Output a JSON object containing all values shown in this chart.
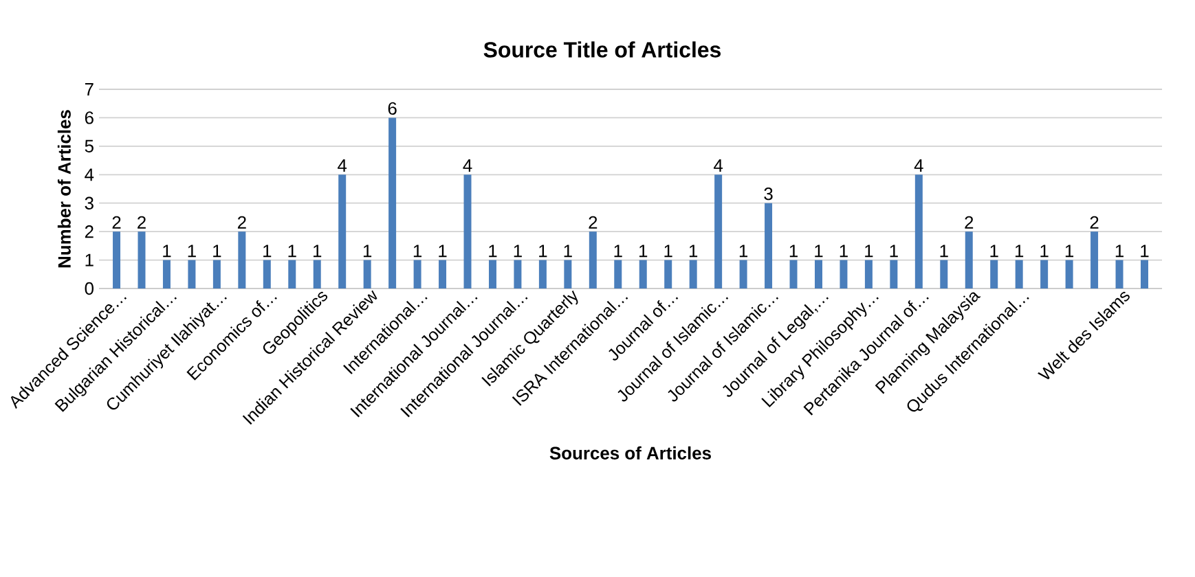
{
  "chart_data": {
    "type": "bar",
    "title": "Source Title of Articles",
    "xlabel": "Sources of Articles",
    "ylabel": "Number of Articles",
    "categories": [
      "Advanced Science…",
      null,
      "Bulgarian Historical…",
      null,
      "Cumhuriyet Ilahiyat…",
      null,
      "Economics of…",
      null,
      "Geopolitics",
      null,
      "Indian Historical Review",
      null,
      "International…",
      null,
      "International Journal…",
      null,
      "International Journal…",
      null,
      "Islamic Quarterly",
      null,
      "ISRA International…",
      null,
      "Journal of…",
      null,
      "Journal of Islamic…",
      null,
      "Journal of Islamic…",
      null,
      "Journal of Legal,…",
      null,
      "Library Philosophy…",
      null,
      "Pertanika Journal of…",
      null,
      "Planning Malaysia",
      null,
      "Qudus International…",
      null,
      null,
      null,
      "Welt des Islams",
      null
    ],
    "values": [
      2,
      2,
      1,
      1,
      1,
      2,
      1,
      1,
      1,
      4,
      1,
      6,
      1,
      1,
      4,
      1,
      1,
      1,
      1,
      2,
      1,
      1,
      1,
      1,
      4,
      1,
      3,
      1,
      1,
      1,
      1,
      1,
      4,
      1,
      2,
      1,
      1,
      1,
      1,
      2,
      1,
      1
    ],
    "color": "#4a7ebb",
    "ylim": [
      0,
      7
    ],
    "yticks": [
      0,
      1,
      2,
      3,
      4,
      5,
      6,
      7
    ],
    "grid": "y",
    "data_labels": true
  }
}
